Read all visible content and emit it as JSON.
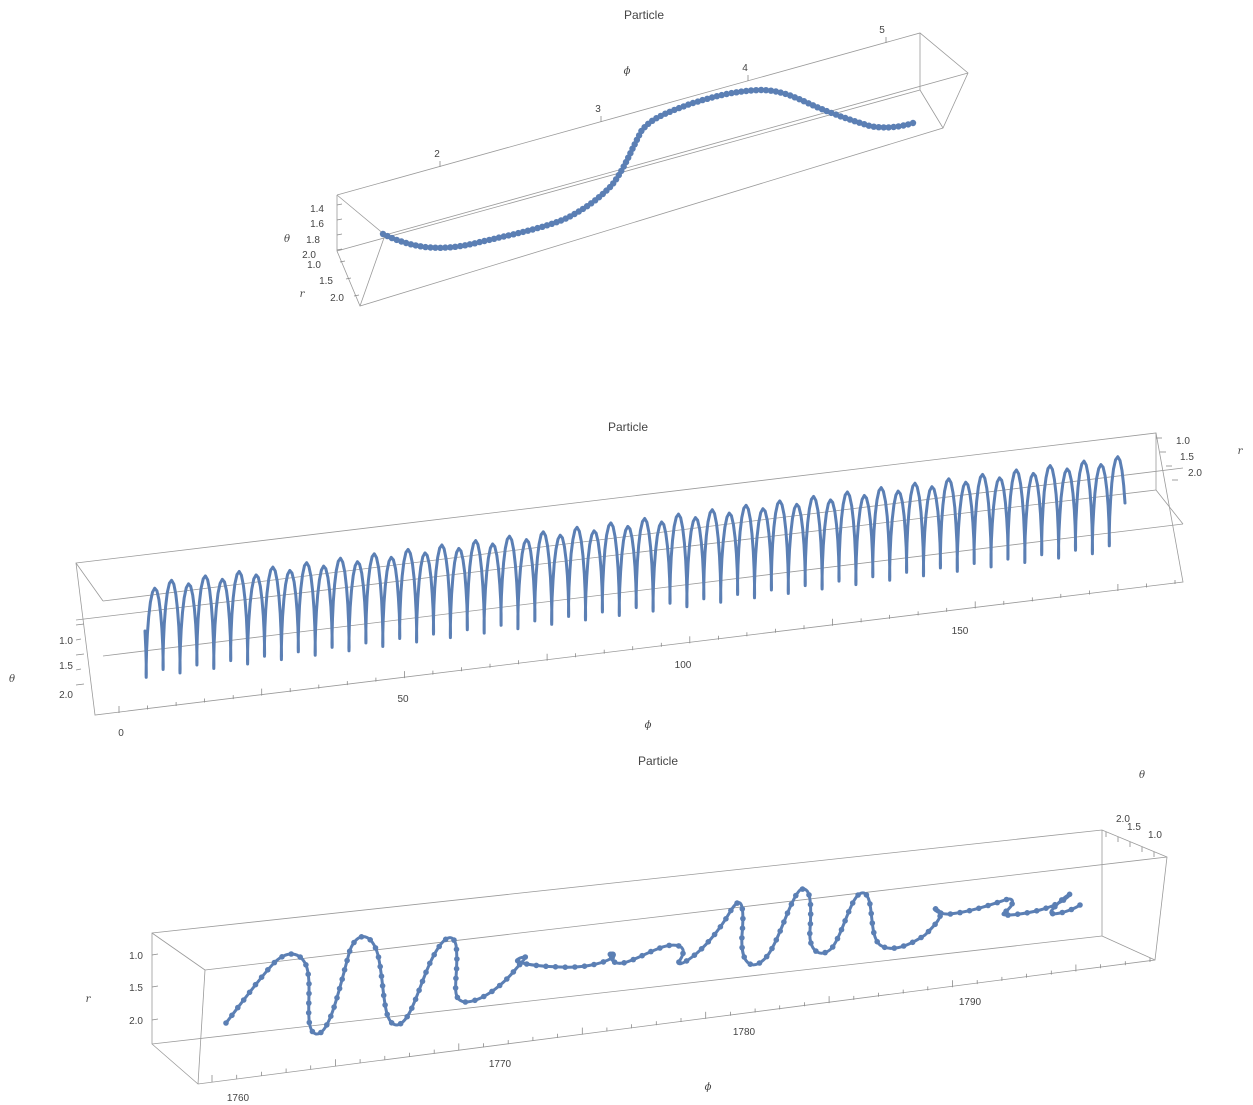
{
  "chart_data": [
    {
      "type": "scatter3d",
      "title": "Particle",
      "axes": {
        "phi": "ϕ",
        "theta": "θ",
        "r": "r"
      },
      "phi_ticks": [
        "2",
        "3",
        "4",
        "5"
      ],
      "theta_ticks": [
        "1.4",
        "1.6",
        "1.8",
        "2.0"
      ],
      "r_ticks": [
        "1.0",
        "1.5",
        "2.0"
      ],
      "phi_range": [
        1.1,
        5.3
      ],
      "theta_range": [
        1.3,
        2.05
      ],
      "r_range": [
        1.0,
        2.2
      ],
      "marker": "dot",
      "color": "#5b7fb4",
      "series": {
        "phi": [
          1.2,
          1.4,
          1.6,
          1.8,
          2.0,
          2.2,
          2.4,
          2.6,
          2.8,
          3.0,
          3.2,
          3.3,
          3.4,
          3.6,
          3.8,
          4.0,
          4.2,
          4.4,
          4.6,
          4.8,
          5.0,
          5.2
        ],
        "theta": [
          1.9,
          1.95,
          1.98,
          1.98,
          1.95,
          1.9,
          1.85,
          1.8,
          1.7,
          1.6,
          1.45,
          1.4,
          1.37,
          1.35,
          1.35,
          1.38,
          1.45,
          1.5,
          1.55,
          1.58,
          1.6,
          1.6
        ]
      }
    },
    {
      "type": "scatter3d",
      "title": "Particle",
      "axes": {
        "phi": "ϕ",
        "theta": "θ",
        "r": "r"
      },
      "phi_ticks": [
        "0",
        "50",
        "100",
        "150"
      ],
      "theta_ticks": [
        "1.0",
        "1.5",
        "2.0"
      ],
      "r_ticks": [
        "1.0",
        "1.5",
        "2.0"
      ],
      "phi_range": [
        0,
        185
      ],
      "theta_range": [
        0.9,
        2.3
      ],
      "r_range": [
        1.0,
        2.2
      ],
      "oscillations": 58,
      "marker": "dot",
      "color": "#5b7fb4"
    },
    {
      "type": "scatter3d",
      "title": "Particle",
      "axes": {
        "phi": "ϕ",
        "theta": "θ",
        "r": "r"
      },
      "phi_ticks": [
        "1760",
        "1770",
        "1780",
        "1790"
      ],
      "r_ticks": [
        "1.0",
        "1.5",
        "2.0"
      ],
      "theta_ticks": [
        "2.0",
        "1.5",
        "1.0"
      ],
      "phi_range": [
        1758,
        1796
      ],
      "r_range": [
        0.8,
        2.2
      ],
      "theta_range": [
        1.0,
        2.2
      ],
      "marker": "dot",
      "color": "#5b7fb4"
    }
  ]
}
